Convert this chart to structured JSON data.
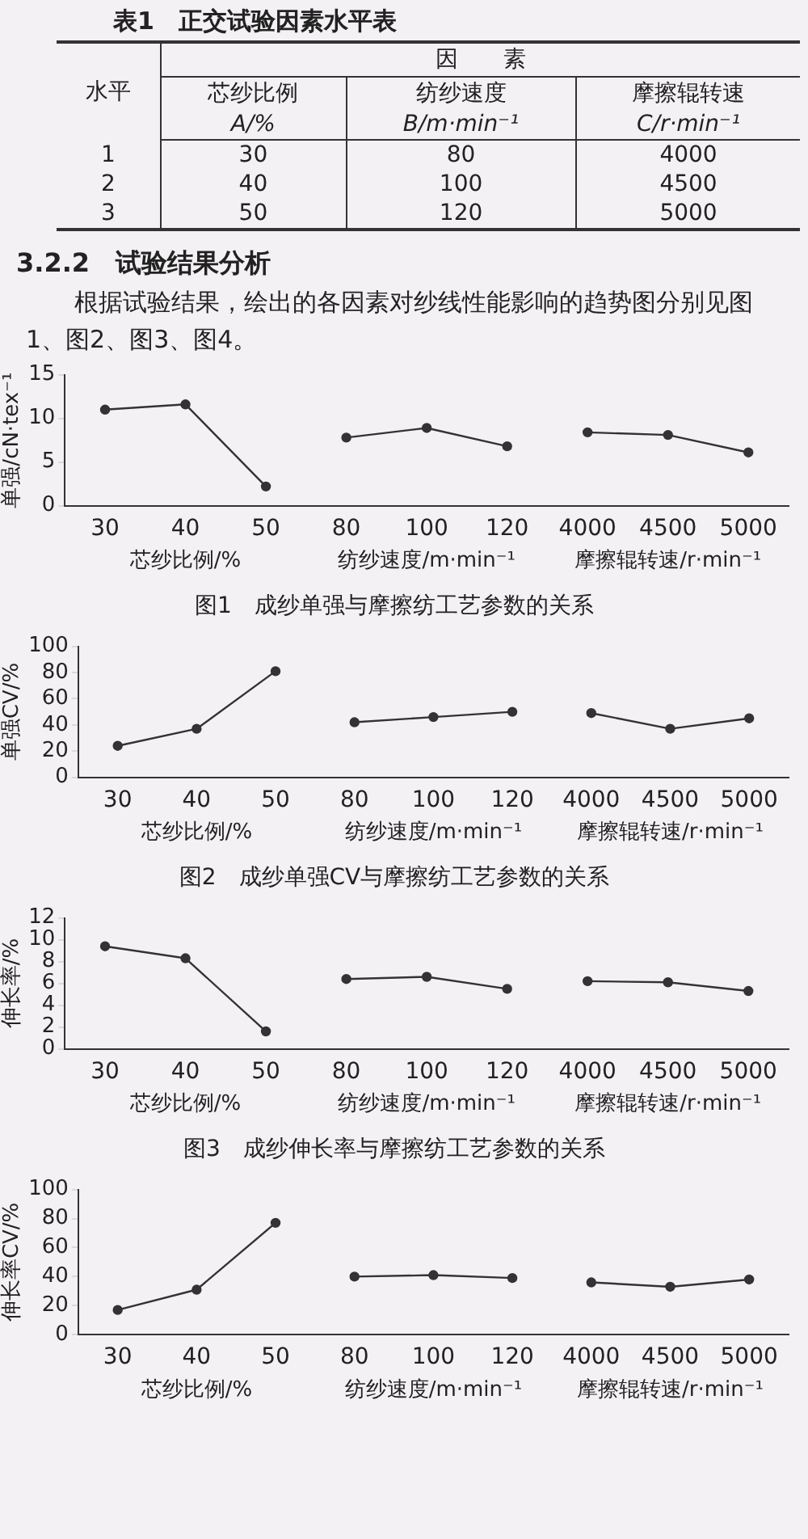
{
  "chart_data": [
    {
      "type": "other",
      "title": "表1　正交试验因素水平表",
      "annotations": [
        "水平",
        "因　　素",
        "芯纱比例",
        "纺纱速度",
        "摩擦辊转速",
        "A/%",
        "B/m·min⁻¹",
        "C/r·min⁻¹",
        "1",
        "30",
        "80",
        "4000",
        "2",
        "40",
        "100",
        "4500",
        "3",
        "50",
        "120",
        "5000",
        "3.2.2　试验结果分析",
        "根据试验结果，绘出的各因素对纱线性能影响的趋势图分别见图1、图2、图3、图4。"
      ]
    },
    {
      "type": "line",
      "title": "图1　成纱单强与摩擦纺工艺参数的关系",
      "categories": [
        "30",
        "40",
        "50",
        "80",
        "100",
        "120",
        "4000",
        "4500",
        "5000"
      ],
      "ylim": [
        0,
        15
      ],
      "yticks": [
        0,
        5,
        10,
        15
      ],
      "ylabel": "单强/cN·tex⁻¹",
      "marker": "circle",
      "annotations": [
        "芯纱比例/%",
        "纺纱速度/m·min⁻¹",
        "摩擦辊转速/r·min⁻¹"
      ],
      "series": [
        {
          "color": "#333333",
          "values": [
            11,
            11.6,
            2.2,
            null,
            null,
            null,
            null,
            null,
            null
          ]
        },
        {
          "color": "#333333",
          "values": [
            null,
            null,
            null,
            7.8,
            8.9,
            6.8,
            null,
            null,
            null
          ]
        },
        {
          "color": "#333333",
          "values": [
            null,
            null,
            null,
            null,
            null,
            null,
            8.4,
            8.1,
            6.1
          ]
        }
      ]
    },
    {
      "type": "line",
      "title": "图2　成纱单强CV与摩擦纺工艺参数的关系",
      "categories": [
        "30",
        "40",
        "50",
        "80",
        "100",
        "120",
        "4000",
        "4500",
        "5000"
      ],
      "ylim": [
        0,
        100
      ],
      "yticks": [
        0,
        20,
        40,
        60,
        80,
        100
      ],
      "ylabel": "单强CV/%",
      "marker": "circle",
      "annotations": [
        "芯纱比例/%",
        "纺纱速度/m·min⁻¹",
        "摩擦辊转速/r·min⁻¹"
      ],
      "series": [
        {
          "color": "#333333",
          "values": [
            24,
            37,
            81,
            null,
            null,
            null,
            null,
            null,
            null
          ]
        },
        {
          "color": "#333333",
          "values": [
            null,
            null,
            null,
            42,
            46,
            50,
            null,
            null,
            null
          ]
        },
        {
          "color": "#333333",
          "values": [
            null,
            null,
            null,
            null,
            null,
            null,
            49,
            37,
            45
          ]
        }
      ]
    },
    {
      "type": "line",
      "title": "图3　成纱伸长率与摩擦纺工艺参数的关系",
      "categories": [
        "30",
        "40",
        "50",
        "80",
        "100",
        "120",
        "4000",
        "4500",
        "5000"
      ],
      "ylim": [
        0,
        12
      ],
      "yticks": [
        0,
        2,
        4,
        6,
        8,
        10,
        12
      ],
      "ylabel": "伸长率/%",
      "marker": "circle",
      "annotations": [
        "芯纱比例/%",
        "纺纱速度/m·min⁻¹",
        "摩擦辊转速/r·min⁻¹"
      ],
      "series": [
        {
          "color": "#333333",
          "values": [
            9.4,
            8.3,
            1.6,
            null,
            null,
            null,
            null,
            null,
            null
          ]
        },
        {
          "color": "#333333",
          "values": [
            null,
            null,
            null,
            6.4,
            6.6,
            5.5,
            null,
            null,
            null
          ]
        },
        {
          "color": "#333333",
          "values": [
            null,
            null,
            null,
            null,
            null,
            null,
            6.2,
            6.1,
            5.3
          ]
        }
      ]
    },
    {
      "type": "line",
      "categories": [
        "30",
        "40",
        "50",
        "80",
        "100",
        "120",
        "4000",
        "4500",
        "5000"
      ],
      "ylim": [
        0,
        100
      ],
      "yticks": [
        0,
        20,
        40,
        60,
        80,
        100
      ],
      "ylabel": "伸长率CV/%",
      "marker": "circle",
      "annotations": [
        "芯纱比例/%",
        "纺纱速度/m·min⁻¹",
        "摩擦辊转速/r·min⁻¹"
      ],
      "series": [
        {
          "color": "#333333",
          "values": [
            17,
            31,
            77,
            null,
            null,
            null,
            null,
            null,
            null
          ]
        },
        {
          "color": "#333333",
          "values": [
            null,
            null,
            null,
            40,
            41,
            39,
            null,
            null,
            null
          ]
        },
        {
          "color": "#333333",
          "values": [
            null,
            null,
            null,
            null,
            null,
            null,
            36,
            33,
            38
          ]
        }
      ]
    }
  ]
}
